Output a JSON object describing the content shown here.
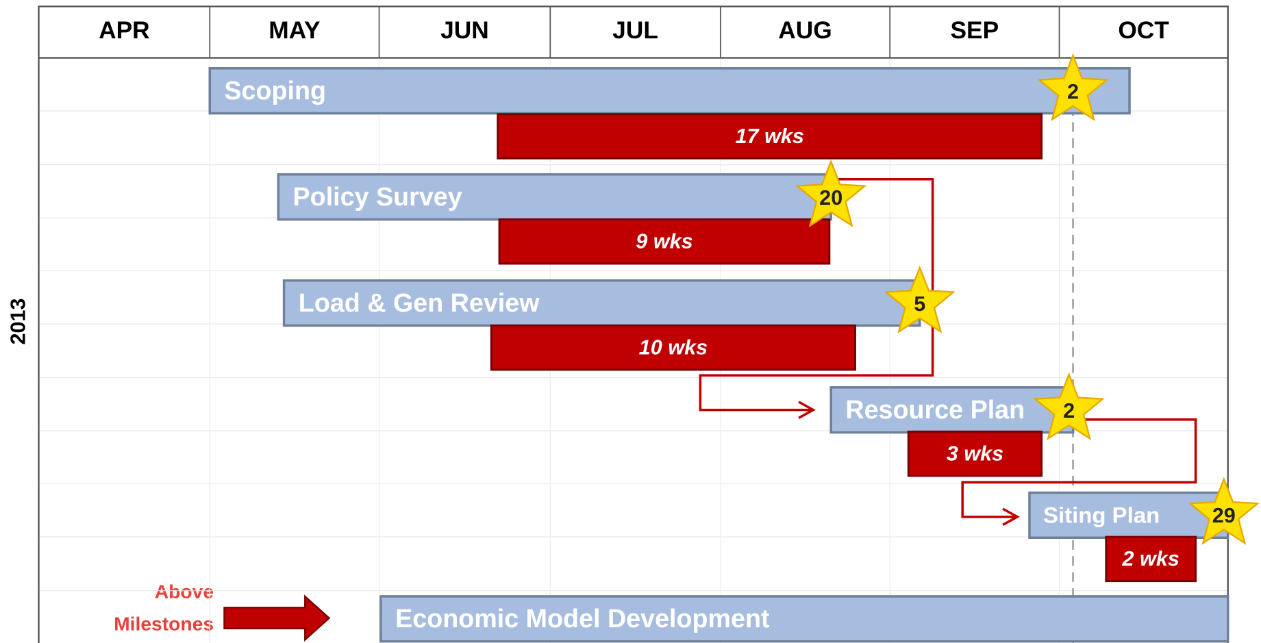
{
  "header": {
    "months": [
      "APR",
      "MAY",
      "JUN",
      "JUL",
      "AUG",
      "SEP",
      "OCT"
    ]
  },
  "year": "2013",
  "tasks": [
    {
      "label": "Scoping",
      "duration": "17 wks",
      "milestone": "2"
    },
    {
      "label": "Policy Survey",
      "duration": "9 wks",
      "milestone": "20"
    },
    {
      "label": "Load & Gen Review",
      "duration": "10 wks",
      "milestone": "5"
    },
    {
      "label": "Resource Plan",
      "duration": "3 wks",
      "milestone": "2"
    },
    {
      "label": "Siting Plan",
      "duration": "2 wks",
      "milestone": "29"
    },
    {
      "label": "Economic Model Development"
    }
  ],
  "legend": {
    "lines": [
      "Above",
      "Milestones"
    ]
  }
}
